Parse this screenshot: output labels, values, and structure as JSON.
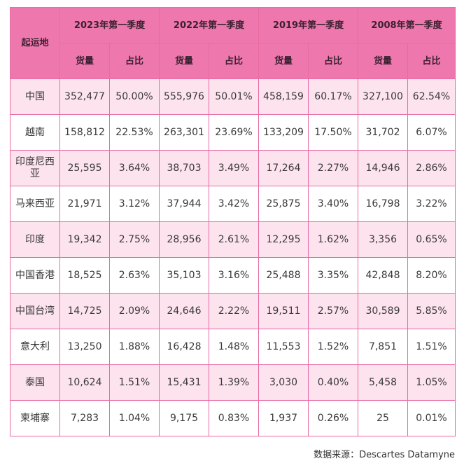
{
  "chart_data": {
    "type": "table",
    "row_header_label": "起运地",
    "periods": [
      "2023年第一季度",
      "2022年第一季度",
      "2019年第一季度",
      "2008年第一季度"
    ],
    "sub_headers": [
      "货量",
      "占比"
    ],
    "rows": [
      {
        "origin": "中国",
        "cells": [
          "352,477",
          "50.00%",
          "555,976",
          "50.01%",
          "458,159",
          "60.17%",
          "327,100",
          "62.54%"
        ]
      },
      {
        "origin": "越南",
        "cells": [
          "158,812",
          "22.53%",
          "263,301",
          "23.69%",
          "133,209",
          "17.50%",
          "31,702",
          "6.07%"
        ]
      },
      {
        "origin": "印度尼西亚",
        "cells": [
          "25,595",
          "3.64%",
          "38,703",
          "3.49%",
          "17,264",
          "2.27%",
          "14,946",
          "2.86%"
        ]
      },
      {
        "origin": "马来西亚",
        "cells": [
          "21,971",
          "3.12%",
          "37,944",
          "3.42%",
          "25,875",
          "3.40%",
          "16,798",
          "3.22%"
        ]
      },
      {
        "origin": "印度",
        "cells": [
          "19,342",
          "2.75%",
          "28,956",
          "2.61%",
          "12,295",
          "1.62%",
          "3,356",
          "0.65%"
        ]
      },
      {
        "origin": "中国香港",
        "cells": [
          "18,525",
          "2.63%",
          "35,103",
          "3.16%",
          "25,488",
          "3.35%",
          "42,848",
          "8.20%"
        ]
      },
      {
        "origin": "中国台湾",
        "cells": [
          "14,725",
          "2.09%",
          "24,646",
          "2.22%",
          "19,511",
          "2.57%",
          "30,589",
          "5.85%"
        ]
      },
      {
        "origin": "意大利",
        "cells": [
          "13,250",
          "1.88%",
          "16,428",
          "1.48%",
          "11,553",
          "1.52%",
          "7,851",
          "1.51%"
        ]
      },
      {
        "origin": "泰国",
        "cells": [
          "10,624",
          "1.51%",
          "15,431",
          "1.39%",
          "3,030",
          "0.40%",
          "5,458",
          "1.05%"
        ]
      },
      {
        "origin": "柬埔寨",
        "cells": [
          "7,283",
          "1.04%",
          "9,175",
          "0.83%",
          "1,937",
          "0.26%",
          "25",
          "0.01%"
        ]
      }
    ]
  },
  "source": "数据来源：Descartes Datamyne",
  "colors": {
    "header": "#ee78ad",
    "stripe": "#fde3ee",
    "border": "#e86aa4"
  }
}
